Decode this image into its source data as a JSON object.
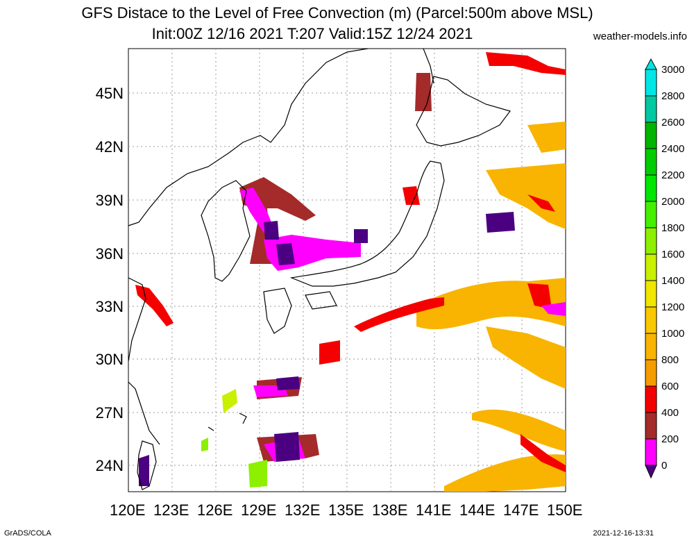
{
  "title_line1": "GFS Distace to the Level of Free Convection (m) (Parcel:500m above MSL)",
  "title_line2": "Init:00Z 12/16 2021 T:207 Valid:15Z 12/24 2021",
  "site": "weather-models.info",
  "footer_left": "GrADS/COLA",
  "footer_right": "2021-12-16-13:31",
  "lat_labels": [
    "45N",
    "42N",
    "39N",
    "36N",
    "33N",
    "30N",
    "27N",
    "24N"
  ],
  "lon_labels": [
    "120E",
    "123E",
    "126E",
    "129E",
    "132E",
    "135E",
    "138E",
    "141E",
    "144E",
    "147E",
    "150E"
  ],
  "colorbar": {
    "labels": [
      "3000",
      "2800",
      "2600",
      "2400",
      "2200",
      "2000",
      "1800",
      "1600",
      "1400",
      "1200",
      "1000",
      "800",
      "600",
      "400",
      "200",
      "0"
    ],
    "colors": [
      "#00e6e6",
      "#00c8a0",
      "#00b400",
      "#00cc00",
      "#00e600",
      "#44f000",
      "#8cf000",
      "#c8f000",
      "#f0e600",
      "#fac800",
      "#f8b400",
      "#f59c00",
      "#f50000",
      "#a52a2a",
      "#ff00ff",
      "#4b0082"
    ]
  }
}
